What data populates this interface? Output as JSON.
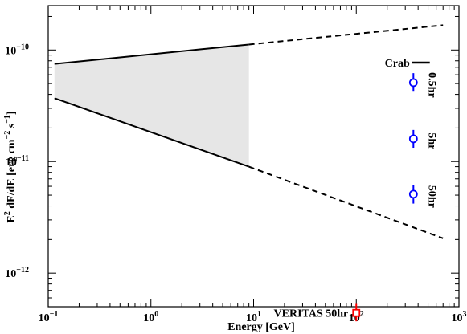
{
  "chart_data": {
    "type": "line",
    "xlabel": "Energy [GeV]",
    "ylabel": "E^2 dF/dE [erg cm^-2 s^-1]",
    "ylabel_parts": {
      "e": "E",
      "sup2": "2",
      "mid": " dF/dE [erg cm",
      "supm2": "−2",
      "s": " s",
      "supm1": "−1",
      "end": "]"
    },
    "x_scale": "log",
    "y_scale": "log",
    "xlim": [
      0.1,
      1000
    ],
    "ylim": [
      5e-13,
      2.5e-10
    ],
    "grid": false,
    "x_ticks": [
      {
        "value": 0.1,
        "base": "10",
        "exp": "−1"
      },
      {
        "value": 1,
        "base": "10",
        "exp": "0"
      },
      {
        "value": 10,
        "base": "10",
        "exp": "1"
      },
      {
        "value": 100,
        "base": "10",
        "exp": "2"
      },
      {
        "value": 1000,
        "base": "10",
        "exp": "3"
      }
    ],
    "y_ticks": [
      {
        "value": 1e-12,
        "base": "10",
        "exp": "−12"
      },
      {
        "value": 1e-11,
        "base": "10",
        "exp": "−11"
      },
      {
        "value": 1e-10,
        "base": "10",
        "exp": "−10"
      }
    ],
    "band": {
      "x": [
        0.115,
        9
      ],
      "upper": [
        7.5e-11,
        1.12e-10
      ],
      "lower": [
        3.7e-11,
        9e-12
      ],
      "fill": "#e6e6e6"
    },
    "extrapolations": [
      {
        "x": [
          9,
          700
        ],
        "y": [
          1.12e-10,
          1.67e-10
        ]
      },
      {
        "x": [
          9,
          700
        ],
        "y": [
          9e-12,
          2.05e-12
        ]
      }
    ],
    "sensitivity_points": [
      {
        "label": "0.5hr",
        "x": 360,
        "y": 5.1e-11,
        "err_lo": 4.3e-11,
        "err_hi": 6.2e-11,
        "color": "#0000ff",
        "marker": "circle"
      },
      {
        "label": "5hr",
        "x": 360,
        "y": 1.6e-11,
        "err_lo": 1.33e-11,
        "err_hi": 1.92e-11,
        "color": "#0000ff",
        "marker": "circle"
      },
      {
        "label": "50hr",
        "x": 360,
        "y": 5.1e-12,
        "err_lo": 4.2e-12,
        "err_hi": 6.2e-12,
        "color": "#0000ff",
        "marker": "circle"
      },
      {
        "label": "VERITAS 50hr",
        "x": 100,
        "y": 4.4e-13,
        "err_lo": 3.7e-13,
        "err_hi": 5.3e-13,
        "color": "#ff0000",
        "marker": "square"
      }
    ],
    "crab_marker": {
      "label": "Crab",
      "x": [
        350,
        520
      ],
      "y": 7.7e-11
    }
  }
}
